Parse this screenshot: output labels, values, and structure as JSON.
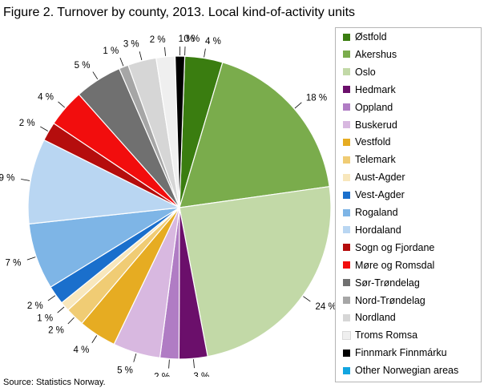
{
  "title": "Figure 2. Turnover by county, 2013. Local kind-of-activity units",
  "source": "Source: Statistics Norway.",
  "chart_data": {
    "type": "pie",
    "legend_position": "right",
    "slices": [
      {
        "name": "Østfold",
        "value": 4,
        "label": "4 %",
        "color": "#3a7d10"
      },
      {
        "name": "Akershus",
        "value": 18,
        "label": "18 %",
        "color": "#7aac4c"
      },
      {
        "name": "Oslo",
        "value": 24,
        "label": "24 %",
        "color": "#c2d9a7"
      },
      {
        "name": "Hedmark",
        "value": 3,
        "label": "3 %",
        "color": "#6b0f6b"
      },
      {
        "name": "Oppland",
        "value": 2,
        "label": "2 %",
        "color": "#b07cc4"
      },
      {
        "name": "Buskerud",
        "value": 5,
        "label": "5 %",
        "color": "#d8b8e0"
      },
      {
        "name": "Vestfold",
        "value": 4,
        "label": "4 %",
        "color": "#e6ac22"
      },
      {
        "name": "Telemark",
        "value": 2,
        "label": "2 %",
        "color": "#f0cc74"
      },
      {
        "name": "Aust-Agder",
        "value": 1,
        "label": "1 %",
        "color": "#f8e7bc"
      },
      {
        "name": "Vest-Agder",
        "value": 2,
        "label": "2 %",
        "color": "#1a6fcc"
      },
      {
        "name": "Rogaland",
        "value": 7,
        "label": "7 %",
        "color": "#7eb5e6"
      },
      {
        "name": "Hordaland",
        "value": 9,
        "label": "9 %",
        "color": "#b9d6f2"
      },
      {
        "name": "Sogn og Fjordane",
        "value": 2,
        "label": "2 %",
        "color": "#b50d0d"
      },
      {
        "name": "Møre og Romsdal",
        "value": 4,
        "label": "4 %",
        "color": "#f20d0d"
      },
      {
        "name": "Sør-Trøndelag",
        "value": 5,
        "label": "5 %",
        "color": "#707070"
      },
      {
        "name": "Nord-Trøndelag",
        "value": 1,
        "label": "1 %",
        "color": "#a6a6a6"
      },
      {
        "name": "Nordland",
        "value": 3,
        "label": "3 %",
        "color": "#d6d6d6"
      },
      {
        "name": "Troms Romsa",
        "value": 2,
        "label": "2 %",
        "color": "#efefef"
      },
      {
        "name": "Finnmark Finnmárku",
        "value": 1,
        "label": "1 %",
        "color": "#000000"
      },
      {
        "name": "Other Norwegian areas",
        "value": 0,
        "label": "0 %",
        "color": "#12a5e0"
      }
    ]
  }
}
